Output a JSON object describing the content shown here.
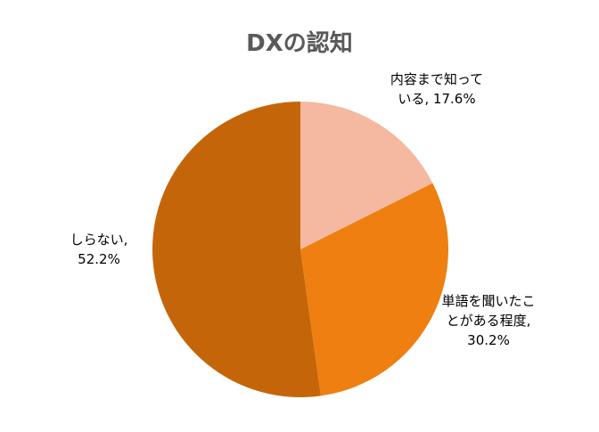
{
  "chart_data": {
    "type": "pie",
    "title": "DXの認知",
    "slices": [
      {
        "label_lines": [
          "内容まで知って",
          "いる, 17.6%"
        ],
        "value": 17.6,
        "color": "#F4B9A0"
      },
      {
        "label_lines": [
          "単語を聞いたこ",
          "とがある程度,",
          "30.2%"
        ],
        "value": 30.2,
        "color": "#EE7F10"
      },
      {
        "label_lines": [
          "しらない,",
          "52.2%"
        ],
        "value": 52.2,
        "color": "#C5650A"
      }
    ],
    "start_angle": "12 o'clock",
    "direction": "clockwise",
    "legend": "none",
    "data_labels": "outside"
  }
}
